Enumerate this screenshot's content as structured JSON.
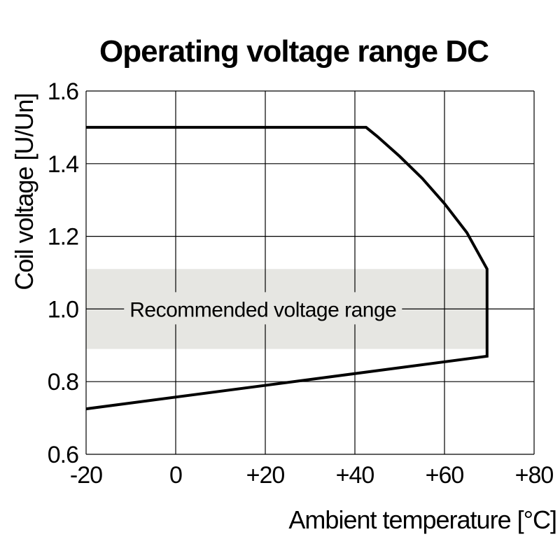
{
  "chart_data": {
    "type": "line",
    "title": "Operating voltage range DC",
    "xlabel": "Ambient temperature [°C]",
    "ylabel": "Coil voltage [U/Un]",
    "xlim": [
      -20,
      80
    ],
    "ylim": [
      0.6,
      1.6
    ],
    "x_ticks": [
      -20,
      0,
      20,
      40,
      60,
      80
    ],
    "x_tick_labels": [
      "-20",
      "0",
      "+20",
      "+40",
      "+60",
      "+80"
    ],
    "y_ticks": [
      0.6,
      0.8,
      1.0,
      1.2,
      1.4,
      1.6
    ],
    "y_tick_labels": [
      "0.6",
      "0.8",
      "1.0",
      "1.2",
      "1.4",
      "1.6"
    ],
    "grid": true,
    "legend": "none",
    "line_color": "#000000",
    "band_color": "#e6e6e2",
    "series": [
      {
        "x": [
          -20,
          42.5,
          45,
          50,
          55,
          60,
          65,
          69.5,
          69.5,
          -20
        ],
        "y": [
          1.5,
          1.5,
          1.475,
          1.42,
          1.36,
          1.29,
          1.21,
          1.11,
          0.87,
          0.725
        ]
      }
    ],
    "bands": [
      {
        "label": "Recommended voltage range",
        "x_range": [
          -20,
          69.5
        ],
        "y_range": [
          0.89,
          1.11
        ]
      }
    ]
  }
}
